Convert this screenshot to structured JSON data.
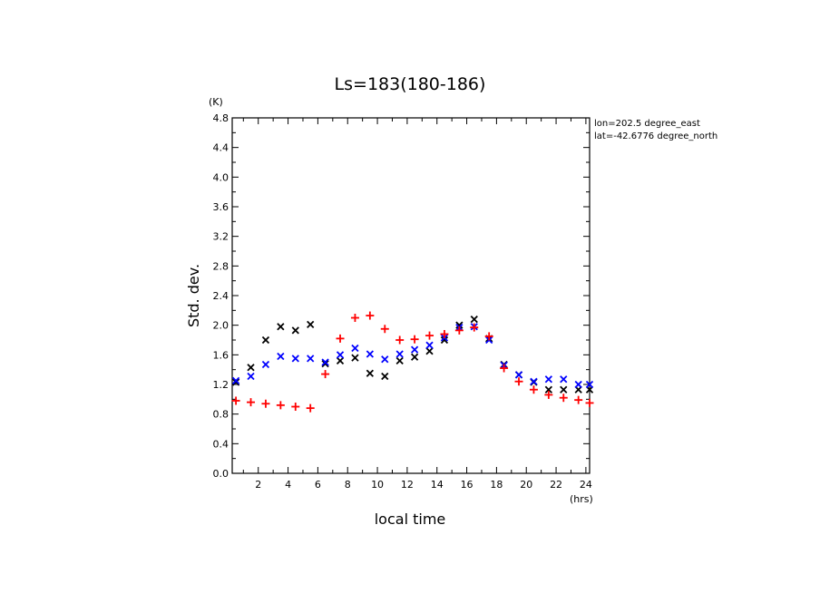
{
  "chart_data": {
    "type": "scatter",
    "title": "Ls=183(180-186)",
    "xlabel": "local time",
    "ylabel": "Std. dev.",
    "x_unit": "(hrs)",
    "y_unit": "(K)",
    "annotations": [
      "lon=202.5 degree_east",
      "lat=-42.6776 degree_north"
    ],
    "xlim": [
      0.25,
      24.25
    ],
    "ylim": [
      0.0,
      4.8
    ],
    "xticks": [
      2,
      4,
      6,
      8,
      10,
      12,
      14,
      16,
      18,
      20,
      22,
      24
    ],
    "yticks": [
      0.0,
      0.4,
      0.8,
      1.2,
      1.6,
      2.0,
      2.4,
      2.8,
      3.2,
      3.6,
      4.0,
      4.4,
      4.8
    ],
    "ytick_labels": [
      "0.0",
      "0.4",
      "0.8",
      "1.2",
      "1.6",
      "2.0",
      "2.4",
      "2.8",
      "3.2",
      "3.6",
      "4.0",
      "4.4",
      "4.8"
    ],
    "grid": false,
    "x": [
      0.5,
      1.5,
      2.5,
      3.5,
      4.5,
      5.5,
      6.5,
      7.5,
      8.5,
      9.5,
      10.5,
      11.5,
      12.5,
      13.5,
      14.5,
      15.5,
      16.5,
      17.5,
      18.5,
      19.5,
      20.5,
      21.5,
      22.5,
      23.5,
      24.25
    ],
    "series": [
      {
        "marker": "x",
        "color": "#000000",
        "values": [
          1.23,
          1.43,
          1.8,
          1.98,
          1.93,
          2.01,
          1.48,
          1.52,
          1.56,
          1.35,
          1.31,
          1.52,
          1.57,
          1.65,
          1.8,
          2.0,
          2.08,
          1.82,
          1.47,
          1.33,
          1.23,
          1.13,
          1.13,
          1.13,
          1.13
        ]
      },
      {
        "marker": "x",
        "color": "#0000ff",
        "values": [
          1.25,
          1.31,
          1.47,
          1.58,
          1.55,
          1.55,
          1.5,
          1.6,
          1.69,
          1.61,
          1.54,
          1.61,
          1.67,
          1.73,
          1.83,
          1.97,
          1.98,
          1.8,
          1.46,
          1.33,
          1.24,
          1.27,
          1.27,
          1.2,
          1.2
        ]
      },
      {
        "marker": "+",
        "color": "#ff0000",
        "values": [
          0.98,
          0.96,
          0.94,
          0.92,
          0.9,
          0.88,
          1.34,
          1.82,
          2.1,
          2.13,
          1.95,
          1.8,
          1.81,
          1.86,
          1.88,
          1.93,
          1.97,
          1.85,
          1.42,
          1.24,
          1.13,
          1.06,
          1.02,
          0.99,
          0.95
        ]
      }
    ]
  }
}
